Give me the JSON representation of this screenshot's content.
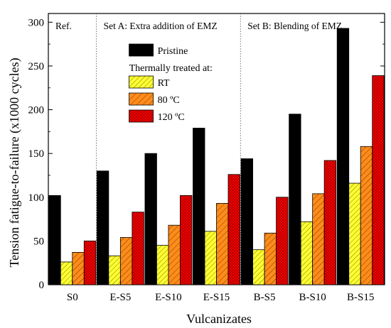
{
  "chart_data": {
    "type": "bar",
    "title": "",
    "xlabel": "Vulcanizates",
    "ylabel": "Tension fatigue-to-failure (x1000 cycles)",
    "ylim": [
      0,
      310
    ],
    "yticks": [
      0,
      50,
      100,
      150,
      200,
      250,
      300
    ],
    "categories": [
      "S0",
      "E-S5",
      "E-S10",
      "E-S15",
      "B-S5",
      "B-S10",
      "B-S15"
    ],
    "sections": [
      {
        "label": "Ref.",
        "categories": [
          "S0"
        ]
      },
      {
        "label": "Set A: Extra addition of EMZ",
        "categories": [
          "E-S5",
          "E-S10",
          "E-S15"
        ]
      },
      {
        "label": "Set B: Blending of EMZ",
        "categories": [
          "B-S5",
          "B-S10",
          "B-S15"
        ]
      }
    ],
    "legend_subtitle": "Thermally treated at:",
    "legend_position": "top-left of Set A",
    "series": [
      {
        "name": "Pristine",
        "color": "#000000",
        "pattern": "solid",
        "values": [
          102,
          130,
          150,
          179,
          144,
          195,
          293
        ]
      },
      {
        "name": "RT",
        "color": "#ffff33",
        "pattern": "diagonal-hatch",
        "values": [
          26,
          33,
          45,
          61,
          40,
          72,
          116
        ]
      },
      {
        "name": "80 ºC",
        "color": "#ff8c1a",
        "pattern": "diagonal-hatch",
        "values": [
          37,
          54,
          68,
          93,
          59,
          104,
          158
        ]
      },
      {
        "name": "120 ºC",
        "color": "#ff0000",
        "pattern": "crosshatch",
        "values": [
          50,
          83,
          102,
          126,
          100,
          142,
          239
        ]
      }
    ]
  }
}
